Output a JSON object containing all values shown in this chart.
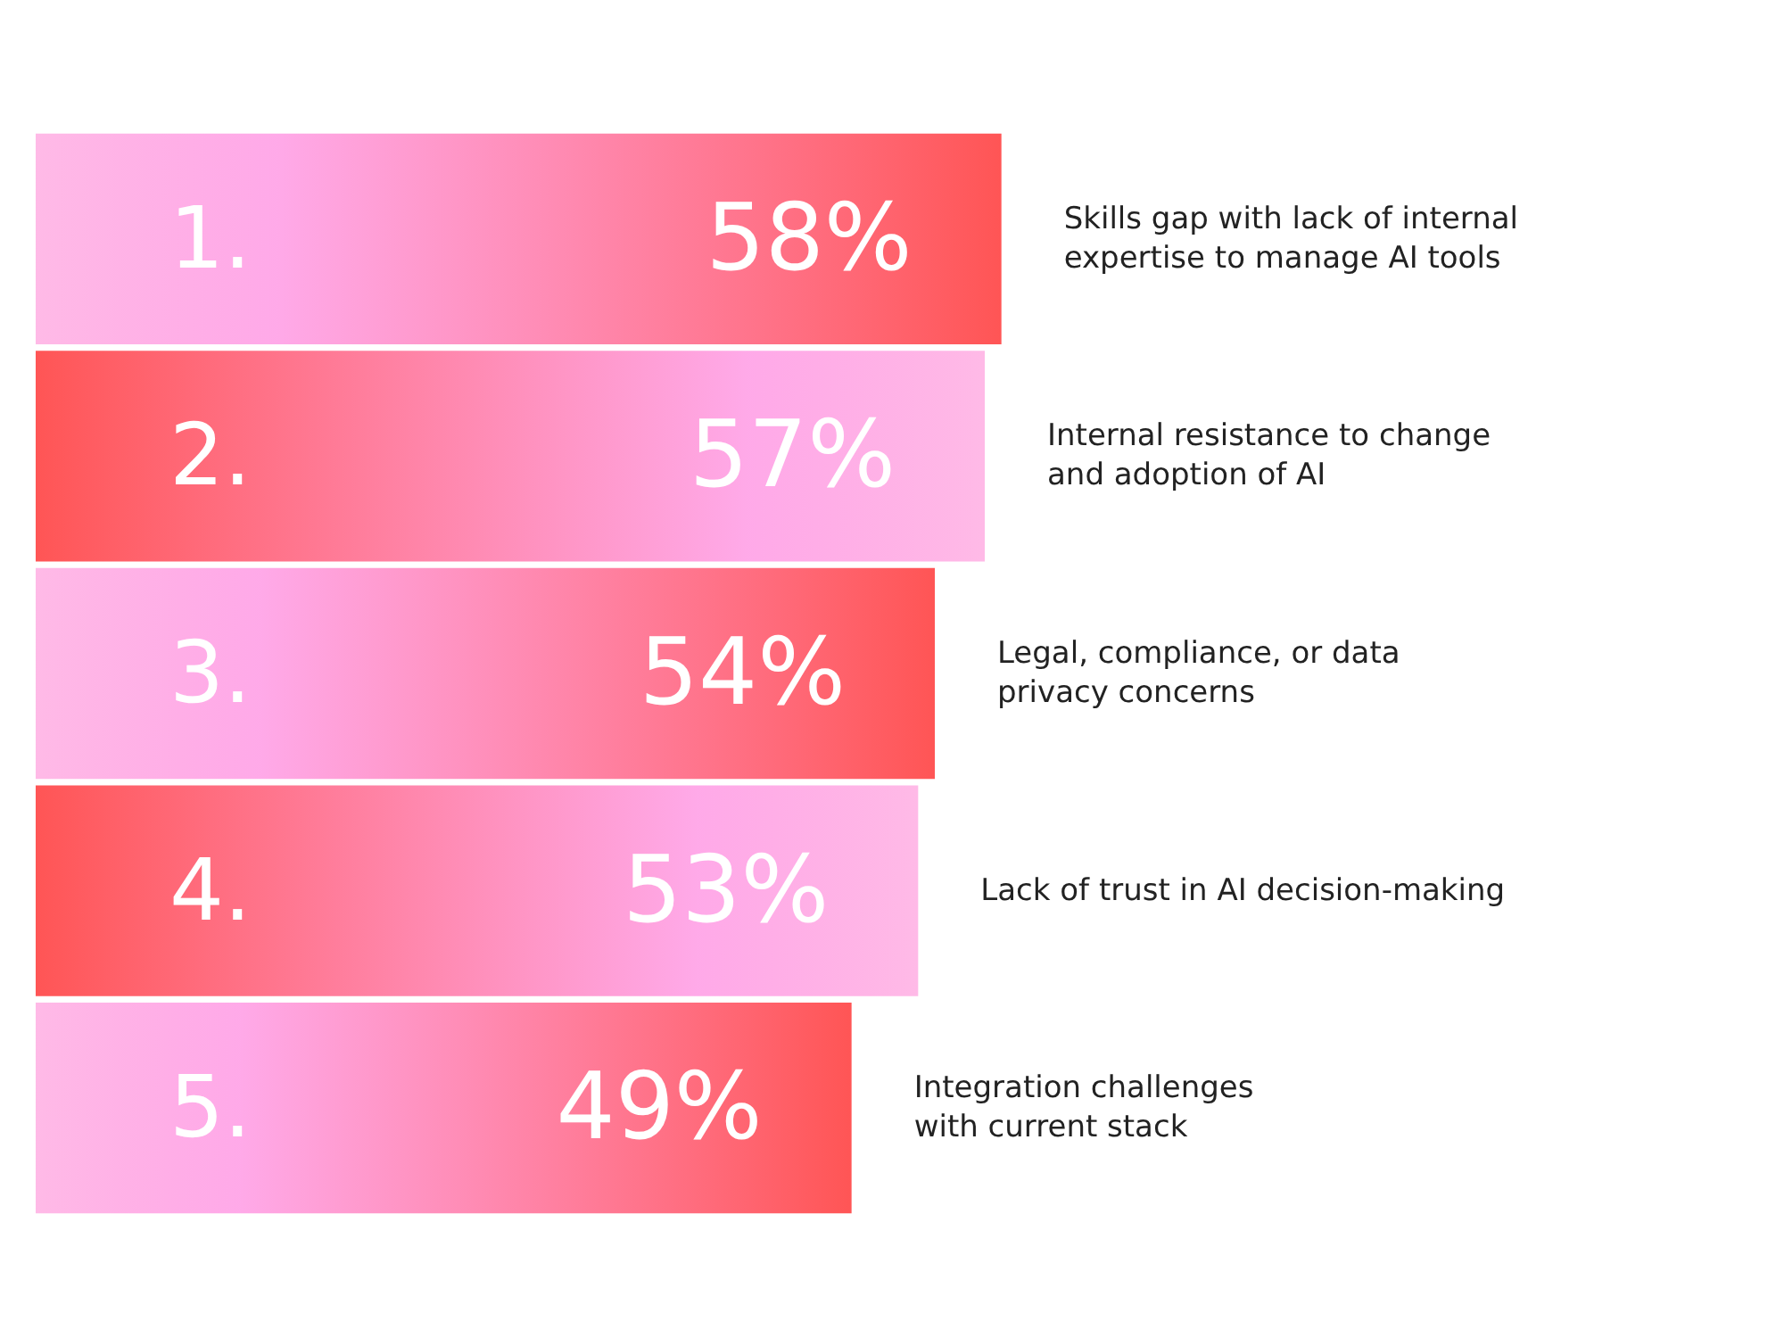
{
  "chart_data": {
    "type": "bar",
    "orientation": "horizontal",
    "categories": [
      "1.",
      "2.",
      "3.",
      "4.",
      "5."
    ],
    "values": [
      58,
      57,
      54,
      53,
      49
    ],
    "value_labels": [
      "58%",
      "57%",
      "54%",
      "53%",
      "49%"
    ],
    "color": "#ff5555",
    "annotations": [
      "Skills gap with lack of internal\nexpertise to manage AI tools",
      "Internal resistance to change\nand adoption of AI",
      "Legal, compliance, or data\nprivacy concerns",
      "Lack of trust in AI decision-making",
      "Integration challenges\nwith current stack"
    ]
  }
}
